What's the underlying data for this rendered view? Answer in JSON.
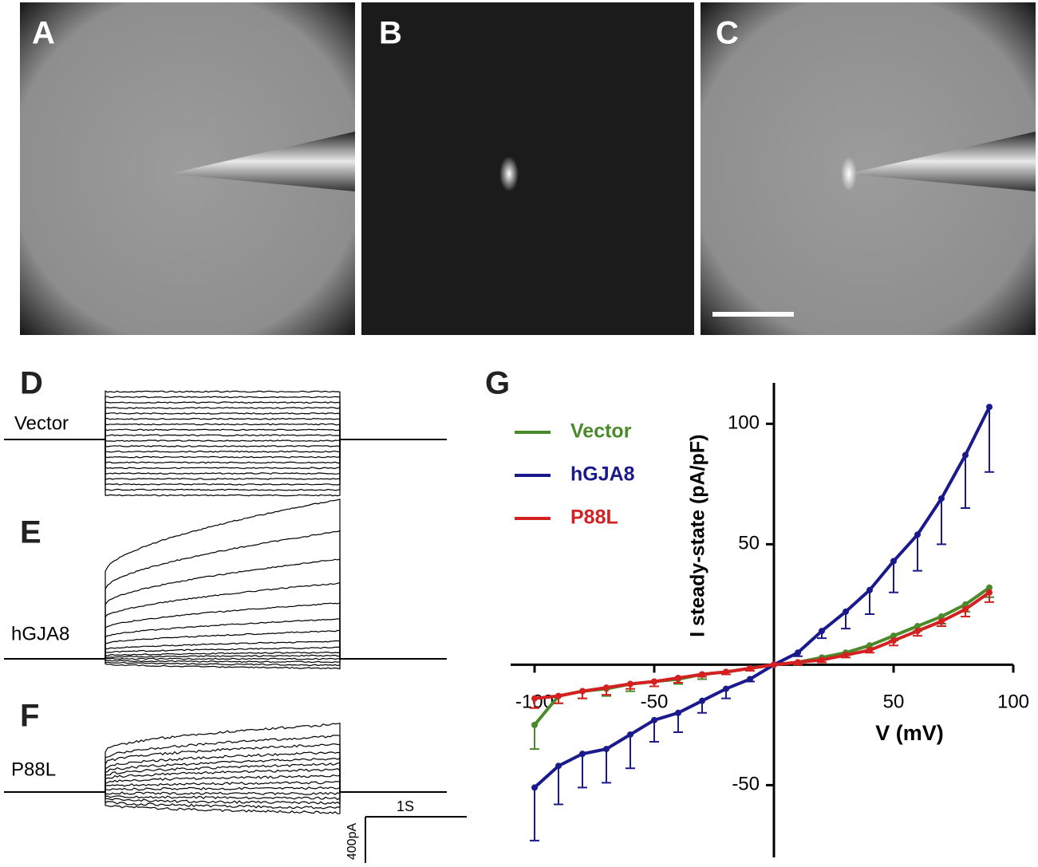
{
  "panels": {
    "a": "A",
    "b": "B",
    "c": "C",
    "d": "D",
    "e": "E",
    "f": "F",
    "g": "G"
  },
  "traces": {
    "vector": "Vector",
    "hgja8": "hGJA8",
    "p88l": "P88L",
    "time_scale": "1S",
    "current_scale": "400pA"
  },
  "chart_data": {
    "type": "line",
    "x_label": "V (mV)",
    "y_label": "I steady-state (pA/pF)",
    "x": [
      -100,
      -90,
      -80,
      -70,
      -60,
      -50,
      -40,
      -30,
      -20,
      -10,
      0,
      10,
      20,
      30,
      40,
      50,
      60,
      70,
      80,
      90
    ],
    "xlim": [
      -110,
      100
    ],
    "xticks": [
      -100,
      -50,
      50,
      100
    ],
    "ylim": [
      -80,
      117
    ],
    "yticks": [
      -50,
      50,
      100
    ],
    "legend": "upper left",
    "series": [
      {
        "name": "Vector",
        "color": "#4a8a2a",
        "values": [
          -25,
          -13,
          -11,
          -10,
          -8,
          -7,
          -6,
          -4,
          -3,
          -1.5,
          0,
          1,
          3,
          5,
          8,
          12,
          16,
          20,
          25,
          32
        ],
        "errors": [
          10,
          3,
          3,
          3,
          3,
          2,
          2,
          2,
          1,
          1,
          0,
          1,
          1,
          1,
          1,
          2,
          2,
          3,
          3,
          4
        ]
      },
      {
        "name": "hGJA8",
        "color": "#1a1a8c",
        "values": [
          -51,
          -42,
          -37,
          -35,
          -29,
          -23,
          -20,
          -15,
          -10,
          -6,
          0,
          5,
          14,
          22,
          31,
          43,
          54,
          69,
          87,
          107
        ],
        "errors": [
          22,
          16,
          14,
          14,
          14,
          9,
          8,
          5,
          4,
          1,
          0,
          1.5,
          3,
          7,
          10,
          13,
          15,
          19,
          22,
          27
        ]
      },
      {
        "name": "P88L",
        "color": "#d42020",
        "values": [
          -14,
          -13,
          -11,
          -9.5,
          -8,
          -7,
          -5.5,
          -4,
          -3,
          -1.5,
          0,
          1,
          2,
          4,
          6,
          10,
          14,
          18,
          23,
          30
        ],
        "errors": [
          4,
          3,
          3,
          3,
          2,
          2,
          2,
          1,
          1,
          1,
          0,
          1,
          1,
          1,
          1,
          2,
          2,
          2,
          3,
          4
        ]
      }
    ]
  }
}
